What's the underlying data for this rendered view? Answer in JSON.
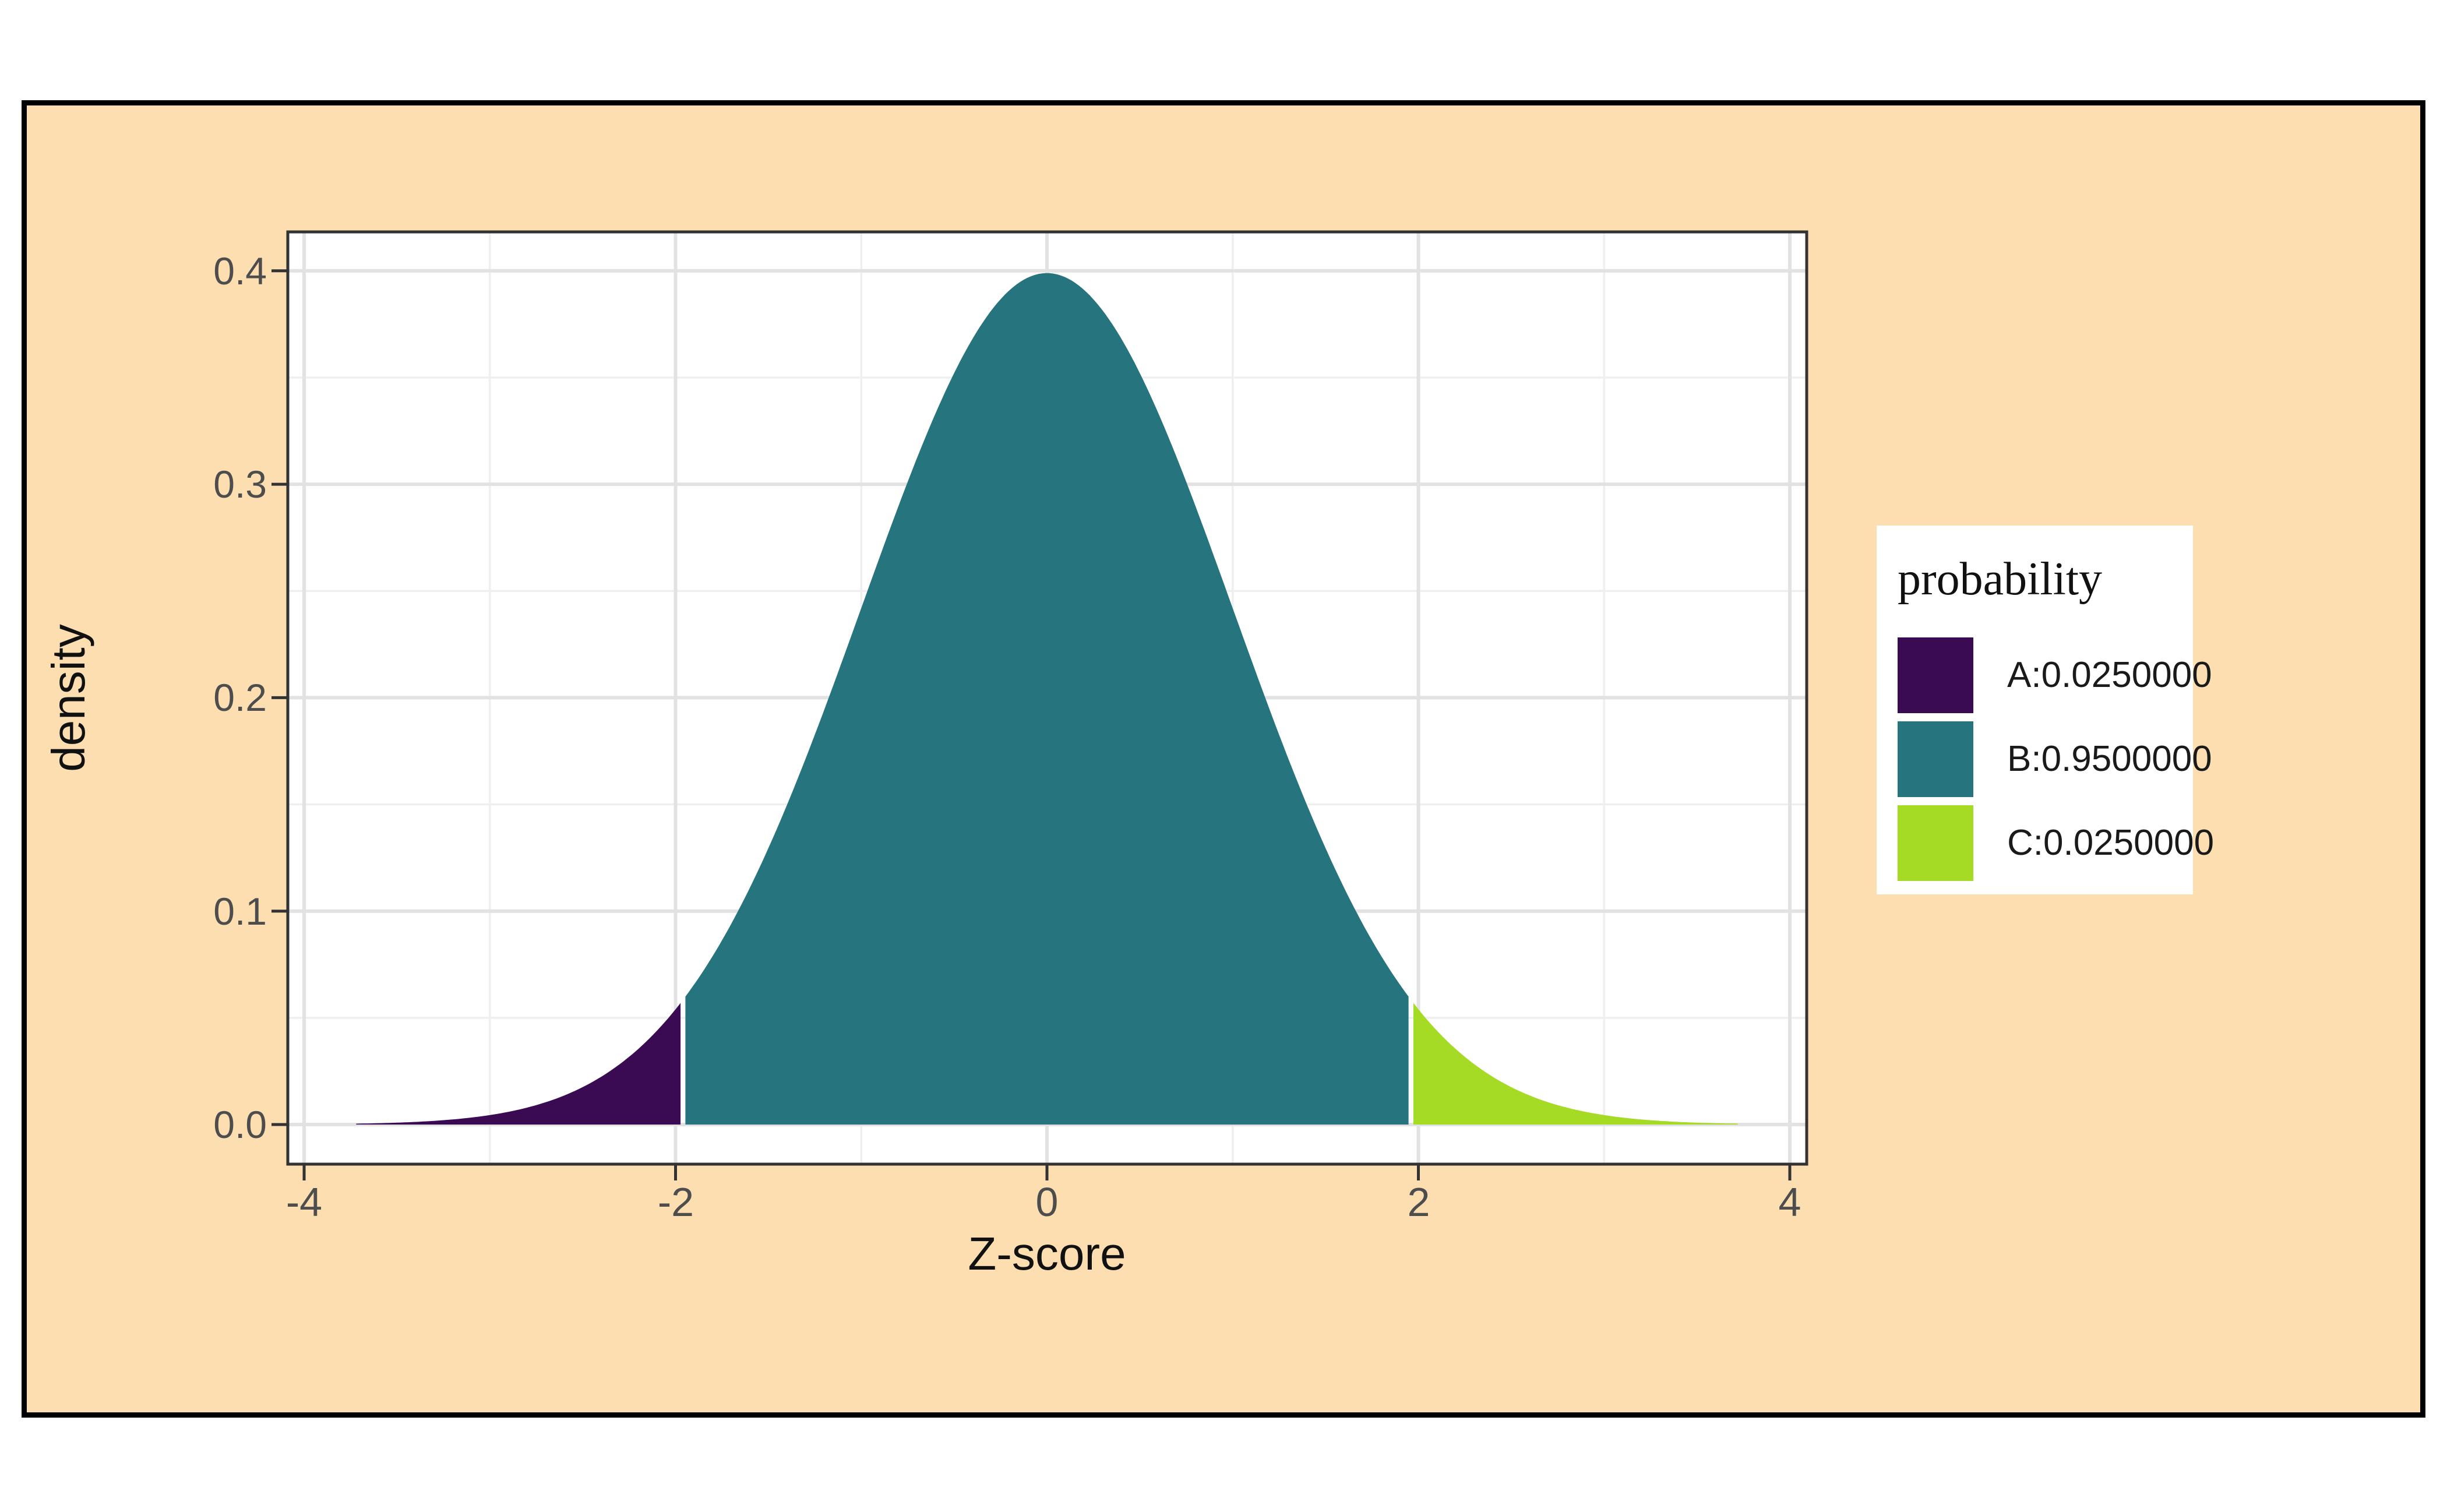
{
  "page": {
    "background": "#ffffff",
    "frame_fill": "#FCDEB0",
    "frame_border_color": "#000000",
    "panel_background": "#ffffff",
    "panel_border_color": "#333333",
    "grid_major_color": "#E2E2E2",
    "grid_minor_color": "#EFEFEF",
    "tick_color": "#333333",
    "tick_text_color": "#4D4D4D"
  },
  "axes": {
    "x_title": "Z-score",
    "y_title": "density",
    "x_tick_labels": [
      "-4",
      "-2",
      "0",
      "2",
      "4"
    ],
    "y_tick_labels": [
      "0.0",
      "0.1",
      "0.2",
      "0.3",
      "0.4"
    ]
  },
  "legend": {
    "title": "probability",
    "items": [
      {
        "label": "A:0.0250000",
        "color": "#3A0A52"
      },
      {
        "label": "B:0.9500000",
        "color": "#26757E"
      },
      {
        "label": "C:0.0250000",
        "color": "#A5DA25"
      }
    ]
  },
  "chart_data": {
    "type": "area",
    "title": "",
    "xlabel": "Z-score",
    "ylabel": "density",
    "distribution": "standard normal density N(0,1), pdf(z)=exp(-z^2/2)/sqrt(2*pi)",
    "mean": 0,
    "sd": 1,
    "x_data_range": [
      -3.72,
      3.72
    ],
    "cut_points": [
      -1.96,
      1.96
    ],
    "peak_density": 0.3989,
    "density_at_cut": 0.0584,
    "x_ticks": [
      -4,
      -2,
      0,
      2,
      4
    ],
    "y_ticks": [
      0.0,
      0.1,
      0.2,
      0.3,
      0.4
    ],
    "x_minor_ticks": [
      -3,
      -1,
      1,
      3
    ],
    "y_minor_ticks": [
      0.05,
      0.15,
      0.25,
      0.35
    ],
    "xlim": [
      -4.05,
      4.05
    ],
    "ylim": [
      -0.0186,
      0.4188
    ],
    "grid": "major and minor, light gray on white panel",
    "legend_position": "right",
    "regions": [
      {
        "name": "A",
        "probability": 0.025,
        "z_from": -3.72,
        "z_to": -1.96,
        "color": "#3A0A52"
      },
      {
        "name": "B",
        "probability": 0.95,
        "z_from": -1.96,
        "z_to": 1.96,
        "color": "#26757E"
      },
      {
        "name": "C",
        "probability": 0.025,
        "z_from": 1.96,
        "z_to": 3.72,
        "color": "#A5DA25"
      }
    ],
    "curve_points": [
      {
        "z": -3.72,
        "density": 0.0004
      },
      {
        "z": -3.0,
        "density": 0.0044
      },
      {
        "z": -2.5,
        "density": 0.0175
      },
      {
        "z": -2.0,
        "density": 0.054
      },
      {
        "z": -1.96,
        "density": 0.0584
      },
      {
        "z": -1.5,
        "density": 0.1295
      },
      {
        "z": -1.0,
        "density": 0.242
      },
      {
        "z": -0.5,
        "density": 0.3521
      },
      {
        "z": 0.0,
        "density": 0.3989
      },
      {
        "z": 0.5,
        "density": 0.3521
      },
      {
        "z": 1.0,
        "density": 0.242
      },
      {
        "z": 1.5,
        "density": 0.1295
      },
      {
        "z": 1.96,
        "density": 0.0584
      },
      {
        "z": 2.0,
        "density": 0.054
      },
      {
        "z": 2.5,
        "density": 0.0175
      },
      {
        "z": 3.0,
        "density": 0.0044
      },
      {
        "z": 3.72,
        "density": 0.0004
      }
    ]
  }
}
